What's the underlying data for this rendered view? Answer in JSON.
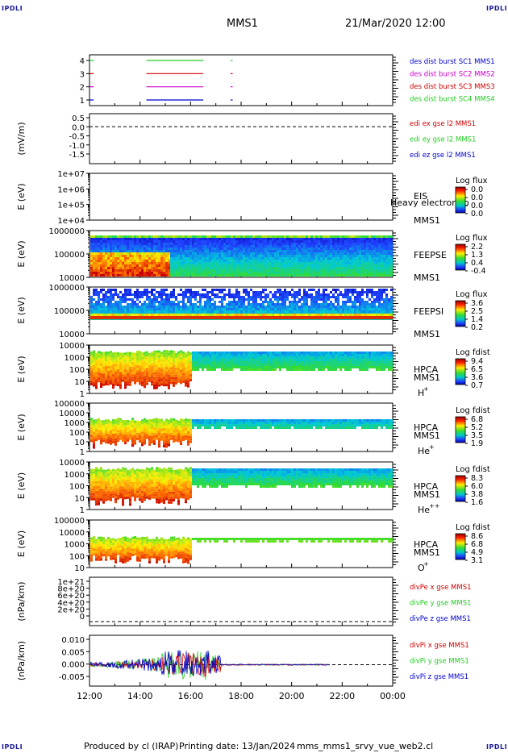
{
  "header": {
    "logo_text": "IPDLI",
    "title": "MMS1",
    "datetime": "21/Mar/2020 12:00"
  },
  "footer": {
    "produced_by": "Produced by cl (IRAP)",
    "printing_date": "Printing date: 13/Jan/2024",
    "filename": "mms_mms1_srvy_vue_web2.cl"
  },
  "time_axis": {
    "labels": [
      "12:00",
      "14:00",
      "16:00",
      "18:00",
      "20:00",
      "22:00",
      "00:00"
    ]
  },
  "colors": {
    "red": "#d40000",
    "green": "#22cc22",
    "blue": "#0000cc",
    "magenta": "#cc00cc"
  },
  "chart_data": [
    {
      "type": "line",
      "title": "",
      "yticks": [
        "4",
        "3",
        "2",
        "1"
      ],
      "legend": [
        {
          "name": "des dist burst SC1 MMS1",
          "color": "#0000cc"
        },
        {
          "name": "des dist burst SC2 MMS2",
          "color": "#cc00cc"
        },
        {
          "name": "des dist burst SC3 MMS3",
          "color": "#d40000"
        },
        {
          "name": "des dist burst SC4 MMS4",
          "color": "#22cc22"
        }
      ],
      "series": [
        {
          "name": "SC4",
          "y": 4,
          "intervals": [
            [
              "12:00",
              "12:10"
            ],
            [
              "14:15",
              "16:30"
            ],
            [
              "17:35",
              "17:40"
            ]
          ]
        },
        {
          "name": "SC3",
          "y": 3,
          "intervals": [
            [
              "12:00",
              "12:10"
            ],
            [
              "14:15",
              "16:30"
            ],
            [
              "17:35",
              "17:40"
            ]
          ]
        },
        {
          "name": "SC2",
          "y": 2,
          "intervals": [
            [
              "12:00",
              "12:10"
            ],
            [
              "14:15",
              "16:30"
            ],
            [
              "17:35",
              "17:40"
            ]
          ]
        },
        {
          "name": "SC1",
          "y": 1,
          "intervals": [
            [
              "12:00",
              "12:10"
            ],
            [
              "14:15",
              "16:30"
            ],
            [
              "17:35",
              "17:40"
            ]
          ]
        }
      ]
    },
    {
      "type": "line",
      "ylabel": "(mV/m)",
      "yticks": [
        "0.5",
        "0.0",
        "-0.5",
        "-1.0",
        "-1.5"
      ],
      "ylim": [
        -2.0,
        0.7
      ],
      "zero_line": true,
      "legend": [
        {
          "name": "edi ex gse l2 MMS1",
          "color": "#d40000"
        },
        {
          "name": "edi ey gse l2 MMS1",
          "color": "#22cc22"
        },
        {
          "name": "edi ez gse l2 MMS1",
          "color": "#0000cc"
        }
      ]
    },
    {
      "type": "heatmap",
      "ylabel": "E (eV)",
      "yticks": [
        "1e+07",
        "1e+06",
        "1e+05",
        "1e+04"
      ],
      "instrument": "EIS",
      "spacecraft": "MMS1",
      "note": "Heavy electron to",
      "colorbar_title": "Log flux",
      "colorbar_ticks": [
        "0.0",
        "0.0",
        "0.0",
        "0.0"
      ]
    },
    {
      "type": "heatmap",
      "ylabel": "E (eV)",
      "yticks": [
        "1000000",
        "100000",
        "10000"
      ],
      "instrument": "FEEPSE",
      "spacecraft": "MMS1",
      "colorbar_title": "Log flux",
      "colorbar_ticks": [
        "2.2",
        "1.3",
        "0.4",
        "-0.4"
      ]
    },
    {
      "type": "heatmap",
      "ylabel": "E (eV)",
      "yticks": [
        "1000000",
        "100000",
        "10000"
      ],
      "instrument": "FEEPSI",
      "spacecraft": "MMS1",
      "colorbar_title": "Log flux",
      "colorbar_ticks": [
        "3.6",
        "2.5",
        "1.4",
        "0.2"
      ]
    },
    {
      "type": "heatmap",
      "ylabel": "E (eV)",
      "yticks": [
        "10000",
        "1000",
        "100",
        "10",
        "1"
      ],
      "instrument": "HPCA",
      "spacecraft": "MMS1",
      "species": "H",
      "species_charge": "+",
      "colorbar_title": "Log fdist",
      "colorbar_ticks": [
        "9.4",
        "6.5",
        "3.6",
        "0.7"
      ]
    },
    {
      "type": "heatmap",
      "ylabel": "E (eV)",
      "yticks": [
        "100000",
        "10000",
        "1000",
        "100",
        "10",
        "1"
      ],
      "instrument": "HPCA",
      "spacecraft": "MMS1",
      "species": "He",
      "species_charge": "+",
      "colorbar_title": "Log fdist",
      "colorbar_ticks": [
        "6.8",
        "5.2",
        "3.5",
        "1.9"
      ]
    },
    {
      "type": "heatmap",
      "ylabel": "E (eV)",
      "yticks": [
        "10000",
        "1000",
        "100",
        "10",
        "1"
      ],
      "instrument": "HPCA",
      "spacecraft": "MMS1",
      "species": "He",
      "species_charge": "++",
      "colorbar_title": "Log fdist",
      "colorbar_ticks": [
        "8.3",
        "6.0",
        "3.8",
        "1.6"
      ]
    },
    {
      "type": "heatmap",
      "ylabel": "E (eV)",
      "yticks": [
        "100000",
        "10000",
        "1000",
        "100",
        "10"
      ],
      "instrument": "HPCA",
      "spacecraft": "MMS1",
      "species": "O",
      "species_charge": "+",
      "colorbar_title": "Log fdist",
      "colorbar_ticks": [
        "8.6",
        "6.8",
        "4.9",
        "3.1"
      ]
    },
    {
      "type": "line",
      "ylabel": "(nPa/km)",
      "yticks": [
        "1e+21",
        "8e+20",
        "6e+20",
        "4e+20",
        "2e+20",
        "0"
      ],
      "zero_line": true,
      "legend": [
        {
          "name": "divPe x gse MMS1",
          "color": "#d40000"
        },
        {
          "name": "divPe y gse MMS1",
          "color": "#22cc22"
        },
        {
          "name": "divPe z gse MMS1",
          "color": "#0000cc"
        }
      ]
    },
    {
      "type": "line",
      "ylabel": "(nPa/km)",
      "yticks": [
        "0.010",
        "0.005",
        "0.000",
        "-0.005"
      ],
      "ylim": [
        -0.008,
        0.011
      ],
      "zero_line": true,
      "legend": [
        {
          "name": "divPi x gse MMS1",
          "color": "#d40000"
        },
        {
          "name": "divPi y gse MMS1",
          "color": "#22cc22"
        },
        {
          "name": "divPi z gse MMS1",
          "color": "#0000cc"
        }
      ]
    }
  ]
}
